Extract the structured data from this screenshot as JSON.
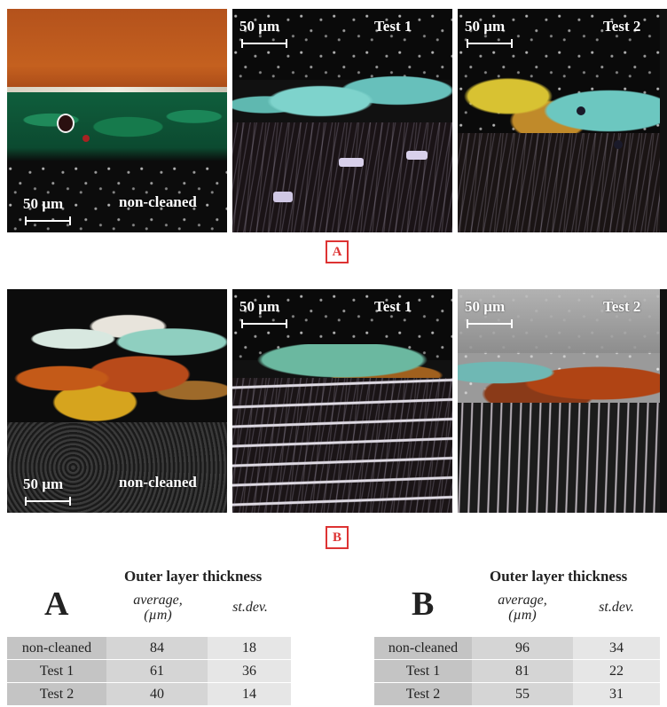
{
  "panels": {
    "A": {
      "noncleaned": {
        "scale": "50 µm",
        "tag": "non-cleaned"
      },
      "test1": {
        "scale": "50 µm",
        "tag": "Test 1"
      },
      "test2": {
        "scale": "50 µm",
        "tag": "Test 2"
      }
    },
    "B": {
      "noncleaned": {
        "scale": "50 µm",
        "tag": "non-cleaned"
      },
      "test1": {
        "scale": "50 µm",
        "tag": "Test 1"
      },
      "test2": {
        "scale": "50 µm",
        "tag": "Test 2"
      }
    }
  },
  "boxed_labels": {
    "a": "A",
    "b": "B"
  },
  "tables": {
    "A": {
      "letter": "A",
      "title": "Outer layer thickness",
      "col_avg": "average, (µm)",
      "col_sd": "st.dev.",
      "rows": [
        {
          "name": "non-cleaned",
          "avg": "84",
          "sd": "18"
        },
        {
          "name": "Test 1",
          "avg": "61",
          "sd": "36"
        },
        {
          "name": "Test 2",
          "avg": "40",
          "sd": "14"
        }
      ]
    },
    "B": {
      "letter": "B",
      "title": "Outer layer thickness",
      "col_avg": "average, (µm)",
      "col_sd": "st.dev.",
      "rows": [
        {
          "name": "non-cleaned",
          "avg": "96",
          "sd": "34"
        },
        {
          "name": "Test 1",
          "avg": "81",
          "sd": "22"
        },
        {
          "name": "Test 2",
          "avg": "55",
          "sd": "31"
        }
      ]
    }
  },
  "colors": {
    "box_red": "#d33333",
    "cell_name": "#c4c4c4",
    "cell_avg": "#d5d5d5",
    "cell_sd": "#e6e6e6"
  }
}
